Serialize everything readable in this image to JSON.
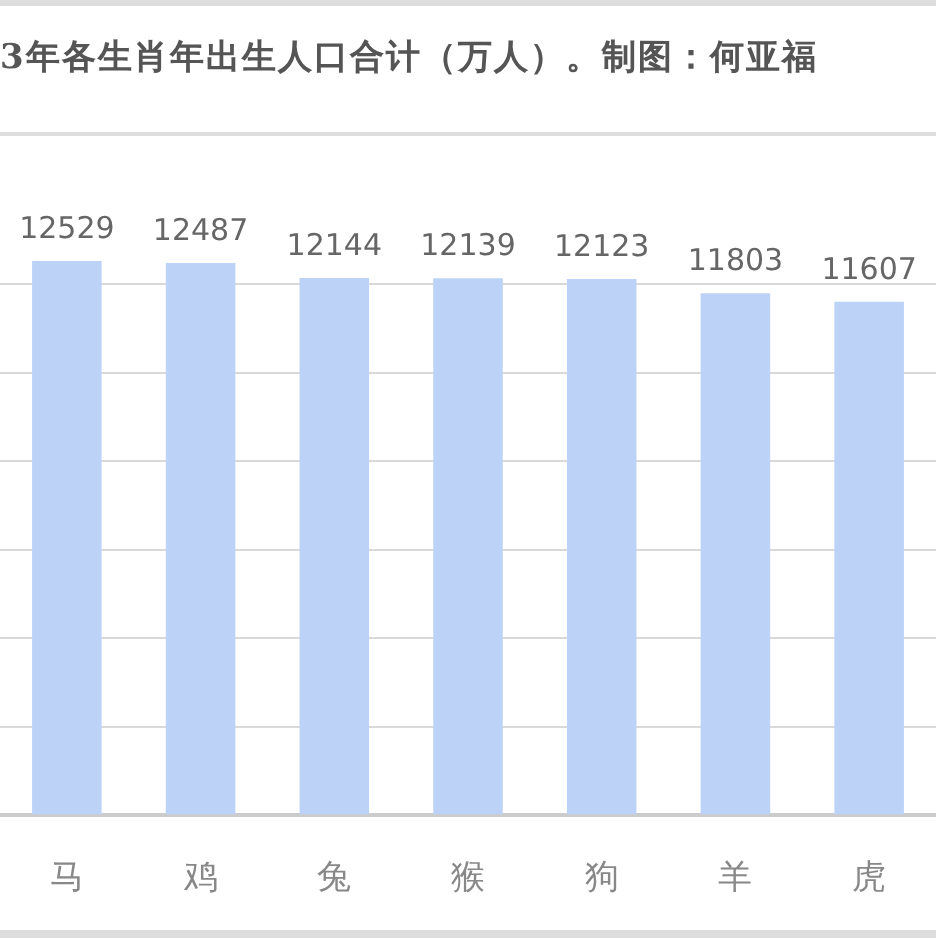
{
  "chart_data": {
    "type": "bar",
    "title": "3年各生肖年出生人口合计（万人）。制图：何亚福",
    "categories": [
      "马",
      "鸡",
      "兔",
      "猴",
      "狗",
      "羊",
      "虎"
    ],
    "values": [
      12529,
      12487,
      12144,
      12139,
      12123,
      11803,
      11607
    ],
    "color": "#bcd3f7",
    "yticks": [
      {
        "value": 0,
        "label": null
      },
      {
        "value": 2000,
        "label": null
      },
      {
        "value": 4000,
        "label": null
      },
      {
        "value": 6000,
        "label": null
      },
      {
        "value": 8000,
        "label": null
      },
      {
        "value": 10000,
        "label": null
      },
      {
        "value": 12000,
        "label": null
      }
    ],
    "grid": "y",
    "tick_labels": "x",
    "data_labels": true,
    "legend": false
  }
}
